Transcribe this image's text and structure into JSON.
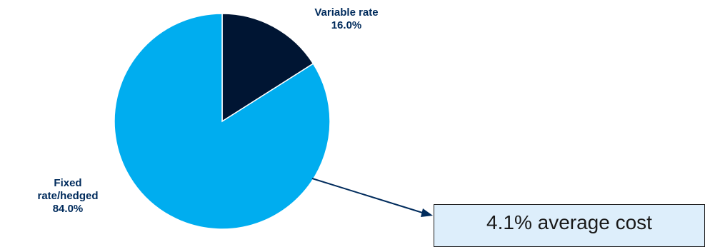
{
  "chart_data": {
    "type": "pie",
    "slices": [
      {
        "label": "Variable rate",
        "value": 16.0,
        "value_label": "16.0%",
        "color": "#001533"
      },
      {
        "label": "Fixed rate/hedged",
        "value": 84.0,
        "value_label": "84.0%",
        "color": "#00adef"
      }
    ],
    "annotation": "4.1% average cost"
  },
  "labels": {
    "variable_name": "Variable rate",
    "variable_value": "16.0%",
    "fixed_name_line1": "Fixed",
    "fixed_name_line2": "rate/hedged",
    "fixed_value": "84.0%"
  },
  "callout": {
    "text": "4.1% average cost",
    "background": "#ddeefb"
  }
}
